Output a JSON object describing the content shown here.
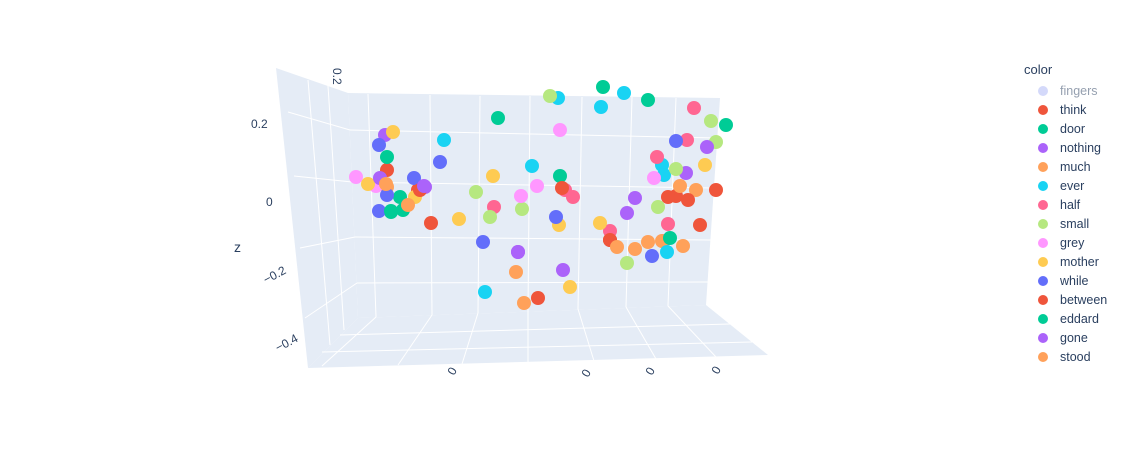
{
  "chart_data": {
    "type": "scatter",
    "subtype": "scatter3d",
    "legend_title": "color",
    "legend_placement": "right",
    "grid": true,
    "axes": {
      "z": {
        "title": "z",
        "ticks": [
          "0.2",
          "0",
          "−0.2",
          "−0.4"
        ]
      },
      "x": {
        "title": "",
        "ticks": [
          "0.2"
        ]
      },
      "y": {
        "title": "",
        "ticks": [
          "0",
          "0",
          "0",
          "0"
        ]
      }
    },
    "series": [
      {
        "name": "fingers",
        "color": "#a9b3f5",
        "dimmed": true
      },
      {
        "name": "think",
        "color": "#EF553B",
        "dimmed": false
      },
      {
        "name": "door",
        "color": "#00CC96",
        "dimmed": false
      },
      {
        "name": "nothing",
        "color": "#AB63FA",
        "dimmed": false
      },
      {
        "name": "much",
        "color": "#FFA15A",
        "dimmed": false
      },
      {
        "name": "ever",
        "color": "#19D3F3",
        "dimmed": false
      },
      {
        "name": "half",
        "color": "#FF6692",
        "dimmed": false
      },
      {
        "name": "small",
        "color": "#B6E880",
        "dimmed": false
      },
      {
        "name": "grey",
        "color": "#FF97FF",
        "dimmed": false
      },
      {
        "name": "mother",
        "color": "#FECB52",
        "dimmed": false
      },
      {
        "name": "while",
        "color": "#636EFA",
        "dimmed": false
      },
      {
        "name": "between",
        "color": "#EF553B",
        "dimmed": false
      },
      {
        "name": "eddard",
        "color": "#00CC96",
        "dimmed": false
      },
      {
        "name": "gone",
        "color": "#AB63FA",
        "dimmed": false
      },
      {
        "name": "stood",
        "color": "#FFA15A",
        "dimmed": false
      }
    ]
  }
}
